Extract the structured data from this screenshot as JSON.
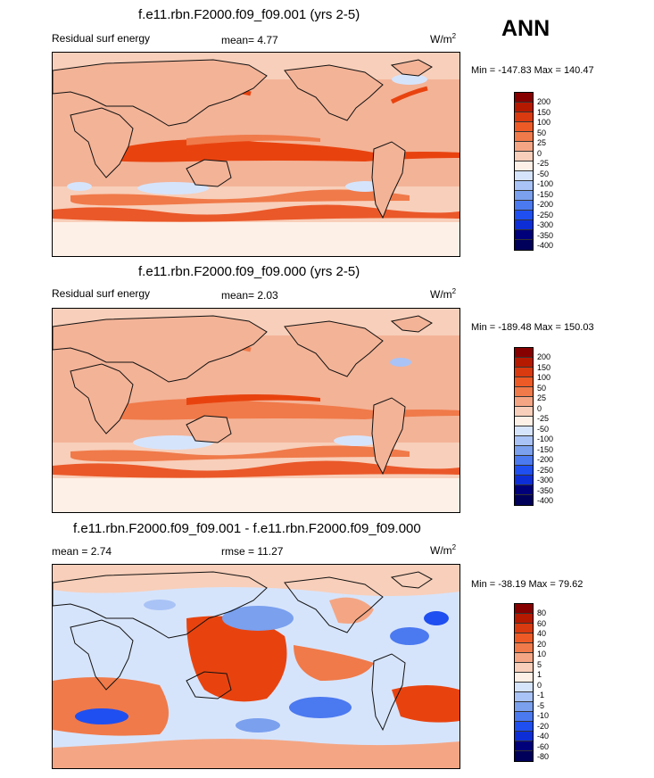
{
  "season": "ANN",
  "units": "W/m",
  "units_sup": "2",
  "colors": {
    "deep_red": "#870000",
    "red": "#e8430f",
    "orange": "#f07a4a",
    "salmon": "#f4a684",
    "peach": "#f8cfba",
    "cream": "#fdf0e7",
    "light_blue": "#d6e4fb",
    "blue": "#7aa0ee",
    "deep_blue": "#1f4ff0",
    "navy": "#00007a",
    "land": "#f3b397",
    "coast": "#111111"
  },
  "panels": [
    {
      "title": "f.e11.rbn.F2000.f09_f09.001 (yrs 2-5)",
      "left_label": "Residual surf energy",
      "mean_text": "mean=  4.77",
      "minmax": "Min = -147.83 Max = 140.47",
      "levels": [
        "200",
        "150",
        "100",
        "50",
        "25",
        "0",
        "-25",
        "-50",
        "-100",
        "-150",
        "-200",
        "-250",
        "-300",
        "-350",
        "-400"
      ]
    },
    {
      "title": "f.e11.rbn.F2000.f09_f09.000 (yrs 2-5)",
      "left_label": "Residual surf energy",
      "mean_text": "mean=  2.03",
      "minmax": "Min = -189.48 Max = 150.03",
      "levels": [
        "200",
        "150",
        "100",
        "50",
        "25",
        "0",
        "-25",
        "-50",
        "-100",
        "-150",
        "-200",
        "-250",
        "-300",
        "-350",
        "-400"
      ]
    },
    {
      "title": "f.e11.rbn.F2000.f09_f09.001 - f.e11.rbn.F2000.f09_f09.000",
      "mean_text": "mean =  2.74",
      "rmse_text": "rmse =  11.27",
      "minmax": "Min = -38.19 Max =  79.62",
      "levels": [
        "80",
        "60",
        "40",
        "20",
        "10",
        "5",
        "1",
        "0",
        "-1",
        "-5",
        "-10",
        "-20",
        "-40",
        "-60",
        "-80"
      ]
    }
  ]
}
